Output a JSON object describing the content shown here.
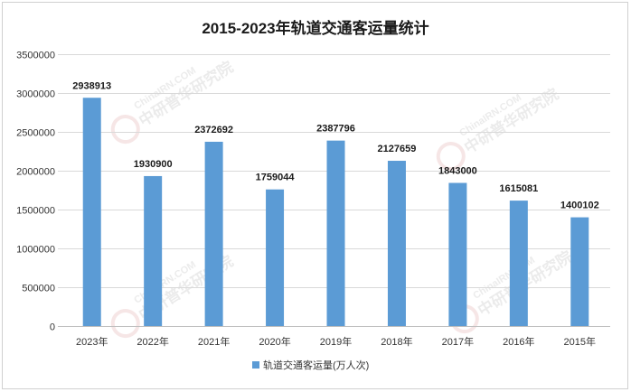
{
  "chart_data": {
    "type": "bar",
    "title": "2015-2023年轨道交通客运量统计",
    "xlabel": "",
    "ylabel": "",
    "categories": [
      "2023年",
      "2022年",
      "2021年",
      "2020年",
      "2019年",
      "2018年",
      "2017年",
      "2016年",
      "2015年"
    ],
    "series": [
      {
        "name": "轨道交通客运量(万人次)",
        "values": [
          2938913,
          1930900,
          2372692,
          1759044,
          2387796,
          2127659,
          1843000,
          1615081,
          1400102
        ]
      }
    ],
    "ylim": [
      0,
      3500000
    ],
    "yticks": [
      0,
      500000,
      1000000,
      1500000,
      2000000,
      2500000,
      3000000,
      3500000
    ],
    "grid": true,
    "legend": "bottom",
    "data_labels": true
  },
  "colors": {
    "bar": "#5B9BD5",
    "grid": "#d9d9d9",
    "border": "#d0d0d0"
  },
  "watermark": {
    "text_en": "ChinaIRN.COM",
    "text_cn": "中研普华研究院"
  }
}
